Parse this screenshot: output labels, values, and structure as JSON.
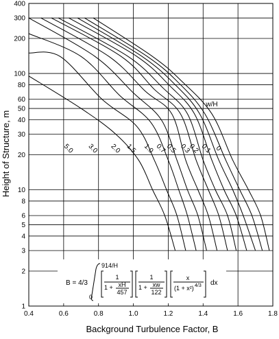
{
  "chart_data": {
    "type": "line",
    "xlabel": "Background Turbulence Factor, B",
    "ylabel": "Height of Structure, m",
    "xlim": [
      0.4,
      1.8
    ],
    "ylim": [
      1,
      400
    ],
    "y_scale": "log",
    "grid": true,
    "x_ticks": [
      "0.4",
      "0.6",
      "0.8",
      "1.0",
      "1.2",
      "1.4",
      "1.6",
      "1.8"
    ],
    "y_ticks": [
      {
        "value": 1,
        "label": "1"
      },
      {
        "value": 2,
        "label": "2"
      },
      {
        "value": 3,
        "label": "3"
      },
      {
        "value": 4,
        "label": "4"
      },
      {
        "value": 5,
        "label": "5"
      },
      {
        "value": 6,
        "label": "6"
      },
      {
        "value": 8,
        "label": "8"
      },
      {
        "value": 10,
        "label": "10"
      },
      {
        "value": 20,
        "label": "20"
      },
      {
        "value": 30,
        "label": "30"
      },
      {
        "value": 40,
        "label": "40"
      },
      {
        "value": 50,
        "label": "50"
      },
      {
        "value": 60,
        "label": "60"
      },
      {
        "value": 80,
        "label": "80"
      },
      {
        "value": 100,
        "label": "100"
      },
      {
        "value": 200,
        "label": "200"
      },
      {
        "value": 300,
        "label": "300"
      },
      {
        "value": 400,
        "label": "400"
      }
    ],
    "series_title": "w/H",
    "series": [
      {
        "name": "0",
        "points": [
          [
            0.77,
            300
          ],
          [
            1.11,
            140
          ],
          [
            1.28,
            85
          ],
          [
            1.45,
            45
          ],
          [
            1.57,
            18
          ],
          [
            1.66,
            10
          ],
          [
            1.73,
            6
          ],
          [
            1.78,
            3
          ]
        ]
      },
      {
        "name": "0.1",
        "points": [
          [
            0.72,
            300
          ],
          [
            1.08,
            140
          ],
          [
            1.26,
            83
          ],
          [
            1.41,
            45
          ],
          [
            1.53,
            18
          ],
          [
            1.61,
            10
          ],
          [
            1.68,
            6
          ],
          [
            1.74,
            3
          ]
        ]
      },
      {
        "name": "0.2",
        "points": [
          [
            0.68,
            300
          ],
          [
            1.05,
            140
          ],
          [
            1.24,
            80
          ],
          [
            1.38,
            45
          ],
          [
            1.49,
            18
          ],
          [
            1.57,
            10
          ],
          [
            1.63,
            6
          ],
          [
            1.7,
            3
          ]
        ]
      },
      {
        "name": "0.3",
        "points": [
          [
            0.63,
            300
          ],
          [
            1.02,
            140
          ],
          [
            1.21,
            78
          ],
          [
            1.35,
            45
          ],
          [
            1.45,
            18
          ],
          [
            1.52,
            10
          ],
          [
            1.59,
            6
          ],
          [
            1.65,
            3
          ]
        ]
      },
      {
        "name": "0.5",
        "points": [
          [
            0.57,
            300
          ],
          [
            0.97,
            140
          ],
          [
            1.17,
            75
          ],
          [
            1.31,
            45
          ],
          [
            1.4,
            18
          ],
          [
            1.47,
            10
          ],
          [
            1.54,
            6
          ],
          [
            1.59,
            3
          ]
        ]
      },
      {
        "name": "0.7",
        "points": [
          [
            0.53,
            300
          ],
          [
            0.93,
            140
          ],
          [
            1.12,
            73
          ],
          [
            1.27,
            45
          ],
          [
            1.36,
            18
          ],
          [
            1.43,
            10
          ],
          [
            1.49,
            6
          ],
          [
            1.54,
            3
          ]
        ]
      },
      {
        "name": "1.0",
        "points": [
          [
            0.47,
            300
          ],
          [
            0.86,
            140
          ],
          [
            1.07,
            70
          ],
          [
            1.22,
            45
          ],
          [
            1.3,
            18
          ],
          [
            1.37,
            10
          ],
          [
            1.43,
            6
          ],
          [
            1.48,
            3
          ]
        ]
      },
      {
        "name": "1.5",
        "points": [
          [
            0.4,
            300
          ],
          [
            0.78,
            140
          ],
          [
            1.0,
            68
          ],
          [
            1.16,
            40
          ],
          [
            1.25,
            18
          ],
          [
            1.31,
            10
          ],
          [
            1.37,
            6
          ],
          [
            1.42,
            3
          ]
        ]
      },
      {
        "name": "2.0",
        "points": [
          [
            0.4,
            220
          ],
          [
            0.7,
            140
          ],
          [
            0.92,
            65
          ],
          [
            1.1,
            38
          ],
          [
            1.2,
            18
          ],
          [
            1.26,
            10
          ],
          [
            1.31,
            6
          ],
          [
            1.36,
            3
          ]
        ]
      },
      {
        "name": "3.0",
        "points": [
          [
            0.4,
            150
          ],
          [
            0.58,
            140
          ],
          [
            0.82,
            60
          ],
          [
            1.02,
            35
          ],
          [
            1.12,
            18
          ],
          [
            1.19,
            10
          ],
          [
            1.25,
            6
          ],
          [
            1.3,
            3
          ]
        ]
      },
      {
        "name": "5.0",
        "points": [
          [
            0.4,
            95
          ],
          [
            0.7,
            50
          ],
          [
            0.9,
            30
          ],
          [
            1.03,
            18
          ],
          [
            1.11,
            10
          ],
          [
            1.18,
            6
          ],
          [
            1.24,
            3
          ]
        ]
      }
    ],
    "curve_labels": [
      {
        "text": "5.0",
        "x": 0.62,
        "y": 22
      },
      {
        "text": "3.0",
        "x": 0.76,
        "y": 22
      },
      {
        "text": "2.0",
        "x": 0.89,
        "y": 22
      },
      {
        "text": "1.5",
        "x": 0.98,
        "y": 22
      },
      {
        "text": "1.0",
        "x": 1.08,
        "y": 22
      },
      {
        "text": "0.7",
        "x": 1.15,
        "y": 22
      },
      {
        "text": "0.5",
        "x": 1.21,
        "y": 22
      },
      {
        "text": "0.3",
        "x": 1.29,
        "y": 22
      },
      {
        "text": "0.2",
        "x": 1.34,
        "y": 22
      },
      {
        "text": "0.1",
        "x": 1.41,
        "y": 22
      },
      {
        "text": "0",
        "x": 1.48,
        "y": 22
      }
    ],
    "series_title_pos": {
      "x": 1.45,
      "y": 52
    }
  },
  "formula": {
    "lhs": "B = 4/3",
    "upper_limit": "914/H",
    "lower_limit": "0",
    "term1_num": "1",
    "term1_den_a": "1 + ",
    "term1_den_frac_num": "xH",
    "term1_den_frac_den": "457",
    "term2_num": "1",
    "term2_den_a": "1 + ",
    "term2_den_frac_num": "xw",
    "term2_den_frac_den": "122",
    "term3_num": "x",
    "term3_den": "(1 + x²)⁴ᐟ³",
    "term3_den_plain": "(1 + x²)",
    "term3_den_exp": "4/3",
    "dx": "dx"
  }
}
